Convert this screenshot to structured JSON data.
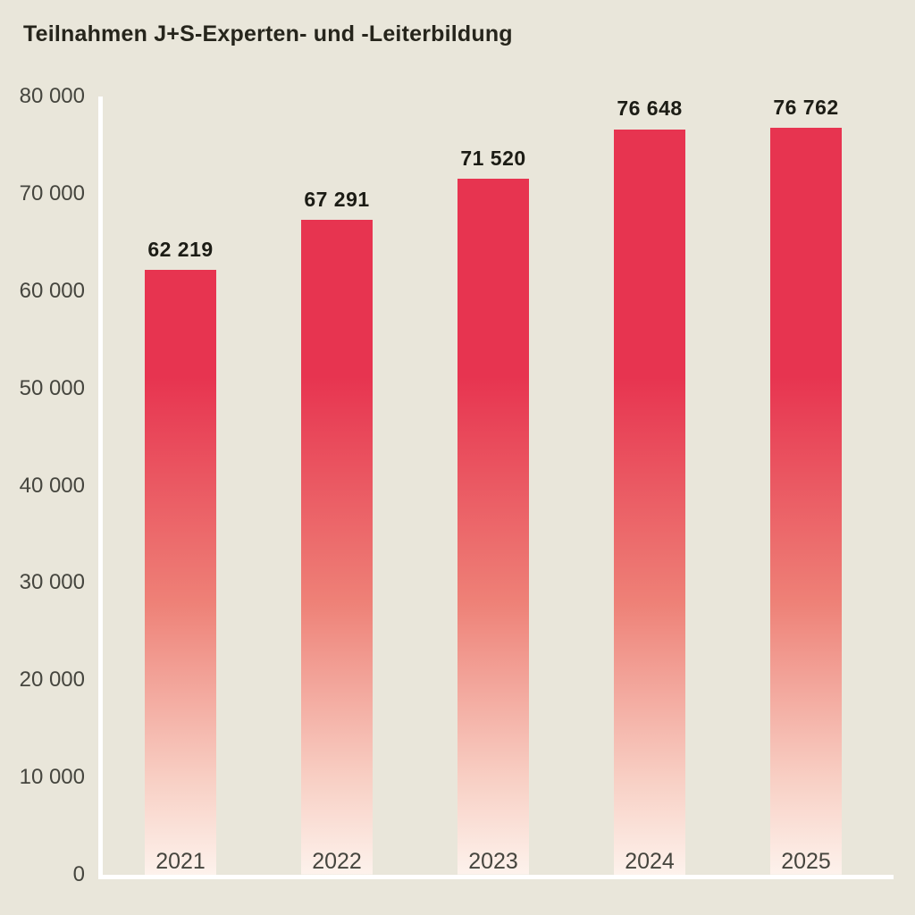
{
  "chart_data": {
    "type": "bar",
    "title": "Teilnahmen J+S-Experten- und -Leiterbildung",
    "categories": [
      "2021",
      "2022",
      "2023",
      "2024",
      "2025"
    ],
    "values": [
      62219,
      67291,
      71520,
      76648,
      76762
    ],
    "value_labels": [
      "62 219",
      "67 291",
      "71 520",
      "76 648",
      "76 762"
    ],
    "xlabel": "",
    "ylabel": "",
    "ylim": [
      0,
      80000
    ],
    "y_tick_step": 10000,
    "y_ticks": [
      "0",
      "10 000",
      "20 000",
      "30 000",
      "40 000",
      "50 000",
      "60 000",
      "70 000",
      "80 000"
    ],
    "grid": false,
    "legend": "none",
    "colors": {
      "background": "#e9e6da",
      "axis": "#ffffff",
      "title_text": "#26251c",
      "value_label_text": "#1c1c15",
      "tick_label_text": "#45453e",
      "bar_gradient_stops": [
        "#e73450 0%",
        "#e73450 36%",
        "#ee8177 65%",
        "#f8d0c5 88%",
        "#fdf2ec 100%"
      ]
    }
  }
}
